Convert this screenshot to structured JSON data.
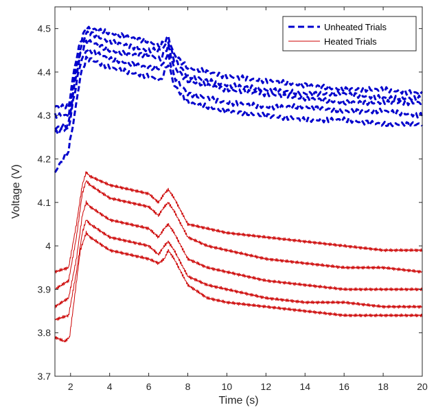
{
  "chart_data": {
    "type": "line",
    "xlabel": "Time (s)",
    "ylabel": "Voltage (V)",
    "xlim": [
      1.2,
      20
    ],
    "ylim": [
      3.7,
      4.55
    ],
    "xticks": [
      2,
      4,
      6,
      8,
      10,
      12,
      14,
      16,
      18,
      20
    ],
    "yticks": [
      3.7,
      3.8,
      3.9,
      4,
      4.1,
      4.2,
      4.3,
      4.4,
      4.5
    ],
    "xtick_labels": [
      "2",
      "4",
      "6",
      "8",
      "10",
      "12",
      "14",
      "16",
      "18",
      "20"
    ],
    "ytick_labels": [
      "3.7",
      "3.8",
      "3.9",
      "4",
      "4.1",
      "4.2",
      "4.3",
      "4.4",
      "4.5"
    ],
    "grid": false,
    "legend_position": "top-right",
    "legend": [
      {
        "label": "Unheated Trials",
        "color": "#0000cc",
        "style": "dashed"
      },
      {
        "label": "Heated Trials",
        "color": "#cc0000",
        "style": "solid"
      }
    ],
    "series": [
      {
        "group": "Unheated Trials",
        "color": "#0000cc",
        "dashed": true,
        "x": [
          1.2,
          1.9,
          2.2,
          2.5,
          2.8,
          3.0,
          4.0,
          5.0,
          6.0,
          6.6,
          7.0,
          7.3,
          8.0,
          10.0,
          12.0,
          14.0,
          16.0,
          18.0,
          20.0
        ],
        "y": [
          4.32,
          4.32,
          4.41,
          4.47,
          4.5,
          4.5,
          4.49,
          4.48,
          4.47,
          4.46,
          4.48,
          4.44,
          4.41,
          4.39,
          4.38,
          4.37,
          4.36,
          4.36,
          4.35
        ]
      },
      {
        "group": "Unheated Trials",
        "color": "#0000cc",
        "dashed": true,
        "x": [
          1.2,
          1.9,
          2.2,
          2.5,
          2.8,
          3.0,
          4.0,
          5.0,
          6.0,
          6.6,
          7.0,
          7.3,
          8.0,
          10.0,
          12.0,
          14.0,
          16.0,
          18.0,
          20.0
        ],
        "y": [
          4.3,
          4.3,
          4.39,
          4.45,
          4.49,
          4.49,
          4.47,
          4.46,
          4.45,
          4.45,
          4.47,
          4.43,
          4.39,
          4.37,
          4.36,
          4.35,
          4.35,
          4.34,
          4.34
        ]
      },
      {
        "group": "Unheated Trials",
        "color": "#0000cc",
        "dashed": true,
        "x": [
          1.2,
          1.9,
          2.2,
          2.5,
          2.8,
          3.0,
          4.0,
          5.0,
          6.0,
          6.6,
          7.0,
          7.3,
          8.0,
          10.0,
          12.0,
          14.0,
          16.0,
          18.0,
          20.0
        ],
        "y": [
          4.27,
          4.28,
          4.37,
          4.44,
          4.47,
          4.47,
          4.45,
          4.44,
          4.44,
          4.43,
          4.46,
          4.41,
          4.38,
          4.36,
          4.35,
          4.34,
          4.33,
          4.33,
          4.33
        ]
      },
      {
        "group": "Unheated Trials",
        "color": "#0000cc",
        "dashed": true,
        "x": [
          1.2,
          1.9,
          2.2,
          2.5,
          2.8,
          3.0,
          4.0,
          5.0,
          6.0,
          6.6,
          7.0,
          7.3,
          8.0,
          10.0,
          12.0,
          14.0,
          16.0,
          18.0,
          20.0
        ],
        "y": [
          4.26,
          4.27,
          4.35,
          4.42,
          4.45,
          4.45,
          4.43,
          4.42,
          4.41,
          4.41,
          4.44,
          4.39,
          4.35,
          4.33,
          4.32,
          4.32,
          4.31,
          4.31,
          4.3
        ]
      },
      {
        "group": "Unheated Trials",
        "color": "#0000cc",
        "dashed": true,
        "x": [
          1.2,
          1.9,
          2.2,
          2.5,
          2.8,
          3.0,
          4.0,
          5.0,
          6.0,
          6.6,
          7.0,
          7.3,
          8.0,
          10.0,
          12.0,
          14.0,
          16.0,
          18.0,
          20.0
        ],
        "y": [
          4.17,
          4.22,
          4.3,
          4.39,
          4.43,
          4.43,
          4.41,
          4.4,
          4.39,
          4.38,
          4.42,
          4.37,
          4.33,
          4.31,
          4.3,
          4.29,
          4.29,
          4.28,
          4.28
        ]
      },
      {
        "group": "Heated Trials",
        "color": "#cc0000",
        "dashed": false,
        "x": [
          1.2,
          1.9,
          2.3,
          2.6,
          2.8,
          3.0,
          4.0,
          5.0,
          6.0,
          6.5,
          6.8,
          7.0,
          7.3,
          8.0,
          9.0,
          10.0,
          12.0,
          14.0,
          16.0,
          18.0,
          20.0
        ],
        "y": [
          3.94,
          3.95,
          4.05,
          4.14,
          4.17,
          4.16,
          4.14,
          4.13,
          4.12,
          4.1,
          4.12,
          4.13,
          4.11,
          4.05,
          4.04,
          4.03,
          4.02,
          4.01,
          4.0,
          3.99,
          3.99
        ]
      },
      {
        "group": "Heated Trials",
        "color": "#cc0000",
        "dashed": false,
        "x": [
          1.2,
          1.9,
          2.3,
          2.6,
          2.8,
          3.0,
          4.0,
          5.0,
          6.0,
          6.5,
          6.8,
          7.0,
          7.3,
          8.0,
          9.0,
          10.0,
          12.0,
          14.0,
          16.0,
          18.0,
          20.0
        ],
        "y": [
          3.9,
          3.92,
          4.02,
          4.12,
          4.15,
          4.14,
          4.11,
          4.1,
          4.09,
          4.07,
          4.09,
          4.1,
          4.08,
          4.02,
          4.0,
          3.99,
          3.97,
          3.96,
          3.95,
          3.95,
          3.94
        ]
      },
      {
        "group": "Heated Trials",
        "color": "#cc0000",
        "dashed": false,
        "x": [
          1.2,
          1.9,
          2.3,
          2.6,
          2.8,
          3.0,
          4.0,
          5.0,
          6.0,
          6.5,
          6.8,
          7.0,
          7.3,
          8.0,
          9.0,
          10.0,
          12.0,
          14.0,
          16.0,
          18.0,
          20.0
        ],
        "y": [
          3.86,
          3.88,
          3.97,
          4.07,
          4.1,
          4.09,
          4.06,
          4.05,
          4.04,
          4.02,
          4.04,
          4.05,
          4.03,
          3.97,
          3.95,
          3.94,
          3.92,
          3.91,
          3.9,
          3.9,
          3.9
        ]
      },
      {
        "group": "Heated Trials",
        "color": "#cc0000",
        "dashed": false,
        "x": [
          1.2,
          1.9,
          2.3,
          2.6,
          2.8,
          3.0,
          4.0,
          5.0,
          6.0,
          6.5,
          6.8,
          7.0,
          7.3,
          8.0,
          9.0,
          10.0,
          12.0,
          14.0,
          16.0,
          18.0,
          20.0
        ],
        "y": [
          3.83,
          3.84,
          3.94,
          4.03,
          4.06,
          4.05,
          4.02,
          4.01,
          4.0,
          3.98,
          4.0,
          4.01,
          3.99,
          3.93,
          3.91,
          3.9,
          3.88,
          3.87,
          3.87,
          3.86,
          3.86
        ]
      },
      {
        "group": "Heated Trials",
        "color": "#cc0000",
        "dashed": false,
        "x": [
          1.2,
          1.7,
          1.95,
          2.2,
          2.5,
          2.8,
          3.0,
          4.0,
          5.0,
          6.0,
          6.5,
          6.8,
          7.0,
          7.3,
          8.0,
          9.0,
          10.0,
          12.0,
          14.0,
          16.0,
          18.0,
          20.0
        ],
        "y": [
          3.79,
          3.78,
          3.79,
          3.88,
          3.99,
          4.03,
          4.02,
          3.99,
          3.98,
          3.97,
          3.96,
          3.97,
          3.99,
          3.97,
          3.91,
          3.88,
          3.87,
          3.86,
          3.85,
          3.84,
          3.84,
          3.84
        ]
      }
    ]
  }
}
